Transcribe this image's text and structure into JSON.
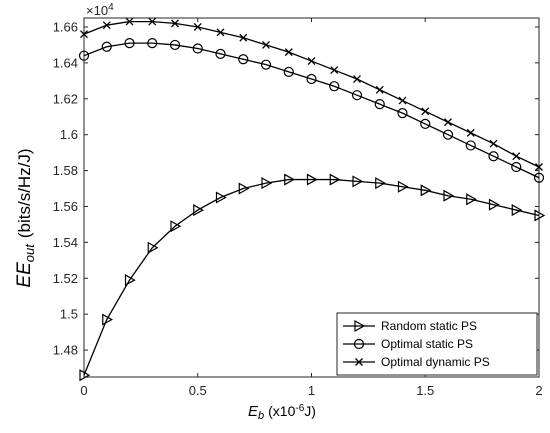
{
  "chart_data": {
    "type": "line",
    "x_axis": {
      "label_main": "E",
      "label_sub": "b",
      "label_unit_pre": "(x10",
      "label_unit_exp": "-6",
      "label_unit_post": "J)",
      "range": [
        0,
        2
      ],
      "ticks": [
        0,
        0.5,
        1,
        1.5,
        2
      ],
      "tick_labels": [
        "0",
        "0.5",
        "1",
        "1.5",
        "2"
      ]
    },
    "y_axis": {
      "label_main": "EE",
      "label_sub": "out",
      "label_unit": "(bits/s/Hz/J)",
      "range": [
        1.465,
        1.665
      ],
      "ticks": [
        1.48,
        1.5,
        1.52,
        1.54,
        1.56,
        1.58,
        1.6,
        1.62,
        1.64,
        1.66
      ],
      "tick_labels": [
        "1.48",
        "1.5",
        "1.52",
        "1.54",
        "1.56",
        "1.58",
        "1.6",
        "1.62",
        "1.64",
        "1.66"
      ],
      "multiplier_base": "×10",
      "multiplier_exp": "4"
    },
    "grid": false,
    "legend_position": "bottom-right",
    "x": [
      0,
      0.1,
      0.2,
      0.3,
      0.4,
      0.5,
      0.6,
      0.7,
      0.8,
      0.9,
      1.0,
      1.1,
      1.2,
      1.3,
      1.4,
      1.5,
      1.6,
      1.7,
      1.8,
      1.9,
      2.0
    ],
    "series": [
      {
        "name": "Random static PS",
        "marker": "triangle-right",
        "color": "#000000",
        "values": [
          1.466,
          1.497,
          1.519,
          1.537,
          1.549,
          1.558,
          1.565,
          1.57,
          1.573,
          1.575,
          1.575,
          1.575,
          1.574,
          1.573,
          1.571,
          1.569,
          1.566,
          1.564,
          1.561,
          1.558,
          1.555
        ]
      },
      {
        "name": "Optimal static PS",
        "marker": "circle",
        "color": "#000000",
        "values": [
          1.644,
          1.649,
          1.651,
          1.651,
          1.65,
          1.648,
          1.645,
          1.642,
          1.639,
          1.635,
          1.631,
          1.627,
          1.622,
          1.617,
          1.612,
          1.606,
          1.6,
          1.594,
          1.588,
          1.582,
          1.576
        ]
      },
      {
        "name": "Optimal dynamic PS",
        "marker": "x",
        "color": "#000000",
        "values": [
          1.656,
          1.661,
          1.663,
          1.663,
          1.662,
          1.66,
          1.657,
          1.654,
          1.65,
          1.646,
          1.641,
          1.636,
          1.631,
          1.625,
          1.619,
          1.613,
          1.607,
          1.601,
          1.595,
          1.588,
          1.582
        ]
      }
    ]
  }
}
